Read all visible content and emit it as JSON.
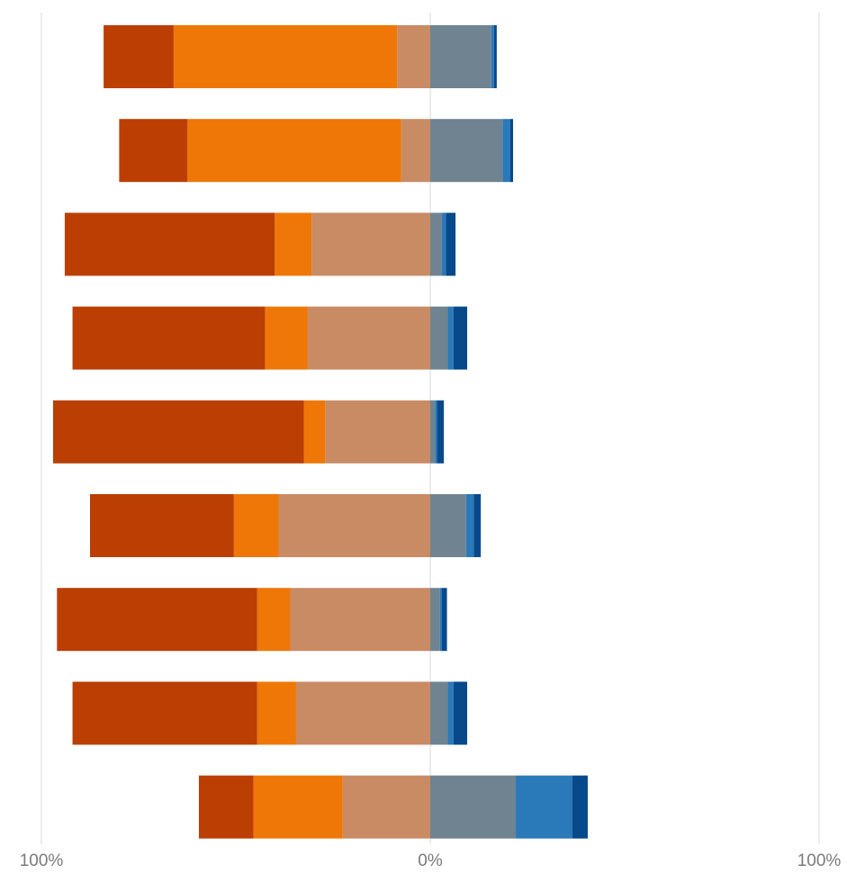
{
  "chart_data": {
    "type": "bar",
    "orientation": "horizontal",
    "stacking": "diverging",
    "title": "",
    "xlabel": "",
    "ylabel": "",
    "xlim": [
      -100,
      100
    ],
    "tick_labels": [
      "100%",
      "0%",
      "100%"
    ],
    "grid": true,
    "legend": "none",
    "left_fragment": ".",
    "colors": [
      "#bb3e03",
      "#ee7708",
      "#c98b64",
      "#708391",
      "#2a79b9",
      "#07498a"
    ],
    "rows": [
      {
        "segments": [
          -84.0,
          -66.0,
          -8.5,
          15.7,
          0.7,
          0.7
        ]
      },
      {
        "segments": [
          -80.0,
          -62.5,
          -7.5,
          18.6,
          2.0,
          0.7
        ]
      },
      {
        "segments": [
          -94.0,
          -40.0,
          -30.5,
          3.0,
          1.0,
          2.5
        ]
      },
      {
        "segments": [
          -92.0,
          -42.5,
          -31.5,
          4.5,
          1.5,
          3.5
        ]
      },
      {
        "segments": [
          -97.0,
          -32.5,
          -27.0,
          1.2,
          0.5,
          1.8
        ]
      },
      {
        "segments": [
          -87.5,
          -50.5,
          -39.0,
          9.2,
          2.0,
          1.8
        ]
      },
      {
        "segments": [
          -96.0,
          -44.5,
          -36.0,
          2.5,
          0.5,
          1.3
        ]
      },
      {
        "segments": [
          -92.0,
          -44.5,
          -34.5,
          4.5,
          1.5,
          3.5
        ]
      },
      {
        "segments": [
          -59.5,
          -45.5,
          -22.5,
          22.0,
          14.5,
          4.0
        ]
      }
    ]
  }
}
